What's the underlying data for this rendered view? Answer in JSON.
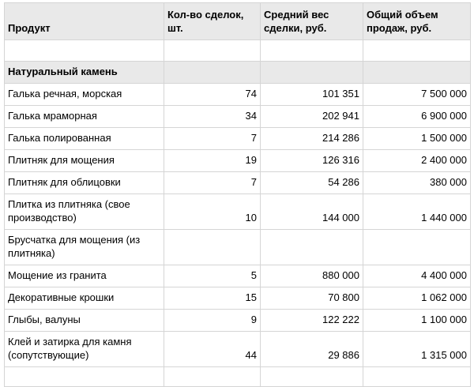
{
  "colors": {
    "header_background": "#e9e9e9",
    "section_background": "#e9e9e9",
    "border": "#d5d5d5",
    "text": "#000000",
    "page_background": "#ffffff"
  },
  "table": {
    "columns": [
      {
        "label": "Продукт"
      },
      {
        "label": "Кол-во сделок, шт."
      },
      {
        "label": "Средний вес сделки, руб."
      },
      {
        "label": "Общий объем продаж, руб."
      }
    ],
    "rows": [
      {
        "type": "empty",
        "product": "",
        "deals": "",
        "avg": "",
        "total": ""
      },
      {
        "type": "section",
        "product": "Натуральный камень",
        "deals": "",
        "avg": "",
        "total": ""
      },
      {
        "type": "data",
        "product": "Галька речная, морская",
        "deals": "74",
        "avg": "101 351",
        "total": "7 500 000"
      },
      {
        "type": "data",
        "product": "Галька мраморная",
        "deals": "34",
        "avg": "202 941",
        "total": "6 900 000"
      },
      {
        "type": "data",
        "product": "Галька полированная",
        "deals": "7",
        "avg": "214 286",
        "total": "1 500 000"
      },
      {
        "type": "data",
        "product": "Плитняк для мощения",
        "deals": "19",
        "avg": "126 316",
        "total": "2 400 000"
      },
      {
        "type": "data",
        "product": "Плитняк для облицовки",
        "deals": "7",
        "avg": "54 286",
        "total": "380 000"
      },
      {
        "type": "data",
        "product": "Плитка из плитняка (свое производство)",
        "deals": "10",
        "avg": "144 000",
        "total": "1 440 000"
      },
      {
        "type": "data",
        "product": "Брусчатка для мощения (из плитняка)",
        "deals": "",
        "avg": "",
        "total": ""
      },
      {
        "type": "data",
        "product": "Мощение из гранита",
        "deals": "5",
        "avg": "880 000",
        "total": "4 400 000"
      },
      {
        "type": "data",
        "product": "Декоративные крошки",
        "deals": "15",
        "avg": "70 800",
        "total": "1 062 000"
      },
      {
        "type": "data",
        "product": "Глыбы, валуны",
        "deals": "9",
        "avg": "122 222",
        "total": "1 100 000"
      },
      {
        "type": "data",
        "product": "Клей и затирка для камня (сопутствующие)",
        "deals": "44",
        "avg": "29 886",
        "total": "1 315 000"
      },
      {
        "type": "cut",
        "product": "",
        "deals": "",
        "avg": "",
        "total": ""
      }
    ]
  }
}
